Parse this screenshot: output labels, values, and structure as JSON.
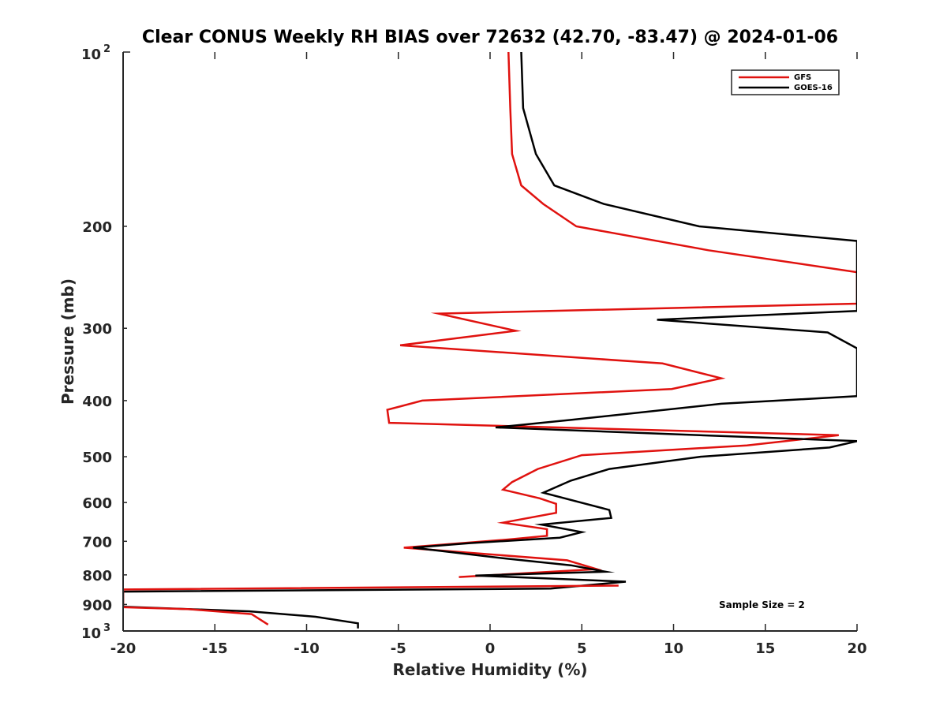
{
  "chart_data": {
    "type": "line",
    "title": "Clear CONUS Weekly RH BIAS over 72632 (42.70, -83.47) @ 2024-01-06",
    "xlabel": "Relative Humidity (%)",
    "ylabel": "Pressure (mb)",
    "xlim": [
      -20,
      20
    ],
    "ylim": [
      100,
      1000
    ],
    "yscale": "log",
    "y_reversed": true,
    "grid": false,
    "legend_position": "top-right",
    "x_ticks": [
      "-20",
      "-15",
      "-10",
      "-5",
      "0",
      "5",
      "10",
      "15",
      "20"
    ],
    "y_ticks": [
      {
        "value": 200,
        "label": "200"
      },
      {
        "value": 300,
        "label": "300"
      },
      {
        "value": 400,
        "label": "400"
      },
      {
        "value": 500,
        "label": "500"
      },
      {
        "value": 600,
        "label": "600"
      },
      {
        "value": 700,
        "label": "700"
      },
      {
        "value": 800,
        "label": "800"
      },
      {
        "value": 900,
        "label": "900"
      }
    ],
    "y_tick_10_2": {
      "value": 100,
      "base": "10",
      "exp": "2"
    },
    "y_tick_10_3": {
      "value": 1000,
      "base": "10",
      "exp": "3"
    },
    "annotation": "Sample Size = 2",
    "series": [
      {
        "name": "GFS",
        "color": "#e0120f",
        "points": [
          {
            "p": 100,
            "x": 1.0
          },
          {
            "p": 125,
            "x": 1.1
          },
          {
            "p": 150,
            "x": 1.2
          },
          {
            "p": 170,
            "x": 1.7
          },
          {
            "p": 183,
            "x": 2.9
          },
          {
            "p": 200,
            "x": 4.7
          },
          {
            "p": 220,
            "x": 11.9
          },
          {
            "p": 240,
            "x": 20.0
          },
          {
            "p": 272,
            "x": 20.0
          },
          {
            "p": 283,
            "x": -2.8
          },
          {
            "p": 303,
            "x": 1.4
          },
          {
            "p": 321,
            "x": -4.9
          },
          {
            "p": 345,
            "x": 9.4
          },
          {
            "p": 366,
            "x": 12.6
          },
          {
            "p": 382,
            "x": 9.9
          },
          {
            "p": 400,
            "x": -3.7
          },
          {
            "p": 415,
            "x": -5.6
          },
          {
            "p": 437,
            "x": -5.5
          },
          {
            "p": 459,
            "x": 19.0
          },
          {
            "p": 478,
            "x": 14.0
          },
          {
            "p": 497,
            "x": 5.0
          },
          {
            "p": 525,
            "x": 2.6
          },
          {
            "p": 553,
            "x": 1.2
          },
          {
            "p": 570,
            "x": 0.7
          },
          {
            "p": 590,
            "x": 2.7
          },
          {
            "p": 603,
            "x": 3.6
          },
          {
            "p": 625,
            "x": 3.6
          },
          {
            "p": 650,
            "x": 0.7
          },
          {
            "p": 667,
            "x": 3.1
          },
          {
            "p": 685,
            "x": 3.1
          },
          {
            "p": 695,
            "x": 1.0
          },
          {
            "p": 718,
            "x": -4.7
          },
          {
            "p": 755,
            "x": 4.2
          },
          {
            "p": 782,
            "x": 5.8
          },
          {
            "p": 807,
            "x": -1.7
          }
        ]
      },
      {
        "name": "GOES-16",
        "color": "#000000",
        "points": [
          {
            "p": 100,
            "x": 1.7
          },
          {
            "p": 125,
            "x": 1.8
          },
          {
            "p": 150,
            "x": 2.5
          },
          {
            "p": 170,
            "x": 3.5
          },
          {
            "p": 183,
            "x": 6.2
          },
          {
            "p": 200,
            "x": 11.4
          },
          {
            "p": 212,
            "x": 20.0
          },
          {
            "p": 280,
            "x": 20.0
          },
          {
            "p": 290,
            "x": 9.1
          },
          {
            "p": 305,
            "x": 18.4
          },
          {
            "p": 325,
            "x": 20.0
          },
          {
            "p": 393,
            "x": 20.0
          },
          {
            "p": 405,
            "x": 12.6
          },
          {
            "p": 432,
            "x": 4.4
          },
          {
            "p": 445,
            "x": 0.3
          },
          {
            "p": 470,
            "x": 20.0
          },
          {
            "p": 482,
            "x": 18.5
          },
          {
            "p": 500,
            "x": 11.5
          },
          {
            "p": 525,
            "x": 6.5
          },
          {
            "p": 550,
            "x": 4.4
          },
          {
            "p": 577,
            "x": 2.9
          },
          {
            "p": 618,
            "x": 6.5
          },
          {
            "p": 638,
            "x": 6.6
          },
          {
            "p": 655,
            "x": 2.8
          },
          {
            "p": 675,
            "x": 5.0
          },
          {
            "p": 690,
            "x": 3.8
          },
          {
            "p": 705,
            "x": -1.1
          },
          {
            "p": 718,
            "x": -4.2
          },
          {
            "p": 750,
            "x": 0.9
          },
          {
            "p": 770,
            "x": 4.4
          },
          {
            "p": 790,
            "x": 6.3
          },
          {
            "p": 802,
            "x": -0.8
          },
          {
            "p": 822,
            "x": 7.4
          },
          {
            "p": 845,
            "x": 3.3
          },
          {
            "p": 855,
            "x": -20.0
          },
          {
            "p": 900,
            "x": -20.0
          },
          {
            "p": 908,
            "x": -20.0
          },
          {
            "p": 925,
            "x": -13.1
          },
          {
            "p": 945,
            "x": -9.5
          },
          {
            "p": 970,
            "x": -7.2
          },
          {
            "p": 990,
            "x": -7.2
          }
        ]
      },
      {
        "name": "GFS",
        "color": "#e0120f",
        "points": [
          {
            "p": 835,
            "x": 7.0
          },
          {
            "p": 848,
            "x": -20.0
          },
          {
            "p": 910,
            "x": -20.0
          },
          {
            "p": 917,
            "x": -16.4
          },
          {
            "p": 935,
            "x": -13.0
          },
          {
            "p": 975,
            "x": -12.1
          }
        ]
      }
    ],
    "legend_entries": [
      {
        "name": "GFS",
        "color": "#e0120f"
      },
      {
        "name": "GOES-16",
        "color": "#000000"
      }
    ]
  }
}
